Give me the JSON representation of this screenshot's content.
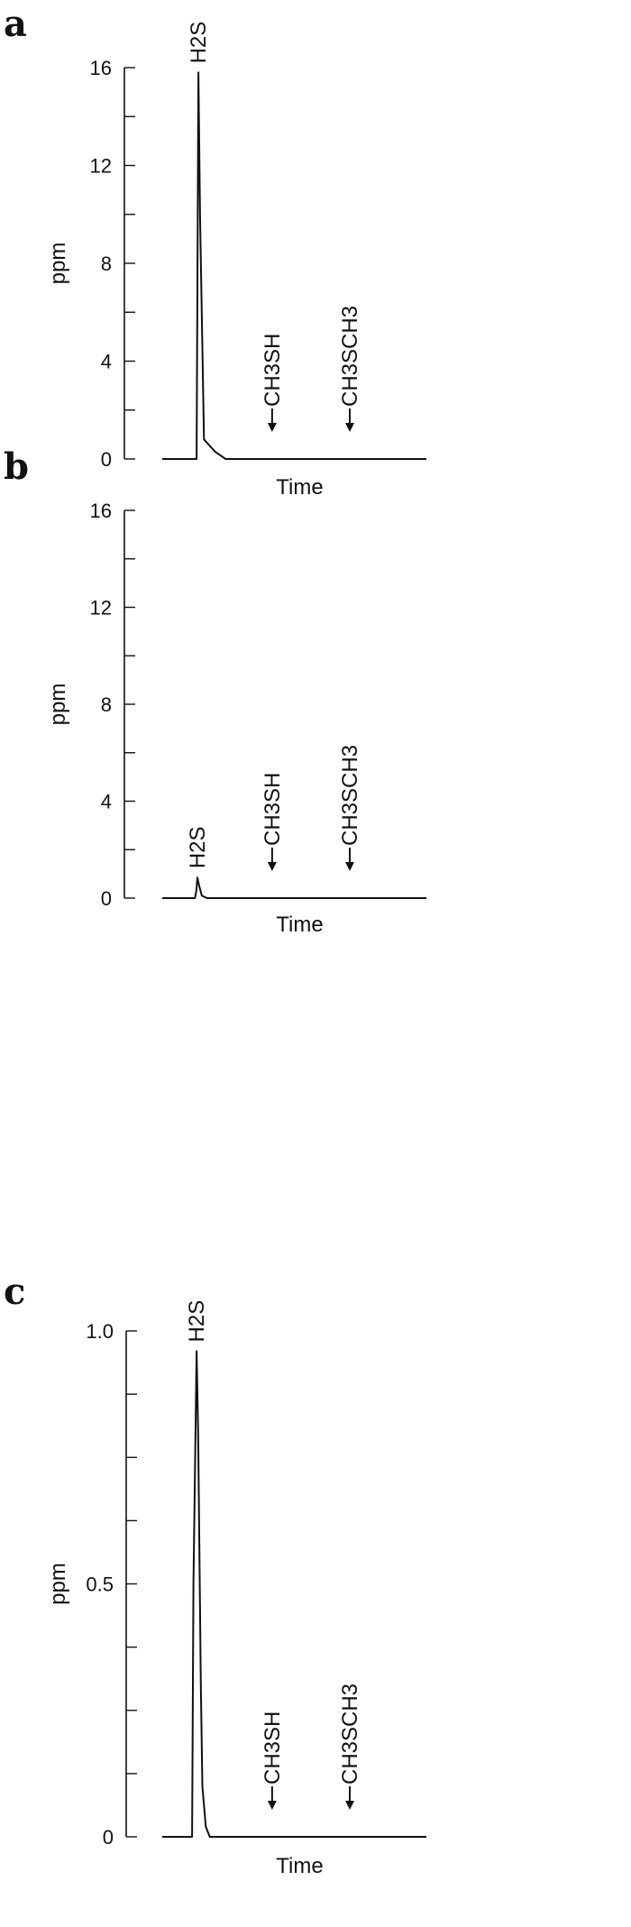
{
  "chart_data": [
    {
      "panel": "a",
      "type": "line",
      "xlabel": "Time",
      "ylabel": "ppm",
      "ylim": [
        0,
        16
      ],
      "yticks": [
        "0",
        "4",
        "8",
        "12",
        "16"
      ],
      "minor_tick_step": 2,
      "x": [
        0,
        13.0,
        13.3,
        13.7,
        14.3,
        15.8,
        16.2,
        20,
        24,
        100
      ],
      "values": [
        0,
        0,
        7,
        15.8,
        10,
        0.8,
        0.75,
        0.3,
        0,
        0
      ],
      "annotations": [
        {
          "label": "H2S",
          "x": 13.7,
          "arrow": false
        },
        {
          "label": "CH3SH",
          "x": 41.6,
          "arrow": true
        },
        {
          "label": "CH3SCH3",
          "x": 71,
          "arrow": true
        }
      ]
    },
    {
      "panel": "b",
      "type": "line",
      "xlabel": "Time",
      "ylabel": "ppm",
      "ylim": [
        0,
        16
      ],
      "yticks": [
        "0",
        "4",
        "8",
        "12",
        "16"
      ],
      "minor_tick_step": 2,
      "x": [
        0,
        12.4,
        12.9,
        13.3,
        14.0,
        15.0,
        17.0,
        100
      ],
      "values": [
        0,
        0,
        0.3,
        0.85,
        0.5,
        0.1,
        0,
        0
      ],
      "annotations": [
        {
          "label": "H2S",
          "x": 13.3,
          "arrow": false
        },
        {
          "label": "CH3SH",
          "x": 41.6,
          "arrow": true
        },
        {
          "label": "CH3SCH3",
          "x": 71,
          "arrow": true
        }
      ]
    },
    {
      "panel": "c",
      "type": "line",
      "xlabel": "Time",
      "ylabel": "ppm",
      "ylim": [
        0,
        1.0
      ],
      "yticks": [
        "0",
        "0.5",
        "1.0"
      ],
      "minor_tick_step": 0.125,
      "x": [
        0,
        11.3,
        11.8,
        12.6,
        13.0,
        13.6,
        14.6,
        15.2,
        16.5,
        18,
        100
      ],
      "values": [
        0,
        0,
        0.5,
        0.8,
        0.96,
        0.8,
        0.3,
        0.1,
        0.02,
        0,
        0
      ],
      "annotations": [
        {
          "label": "H2S",
          "x": 13.0,
          "arrow": false
        },
        {
          "label": "CH3SH",
          "x": 41.6,
          "arrow": true
        },
        {
          "label": "CH3SCH3",
          "x": 71,
          "arrow": true
        }
      ]
    }
  ]
}
